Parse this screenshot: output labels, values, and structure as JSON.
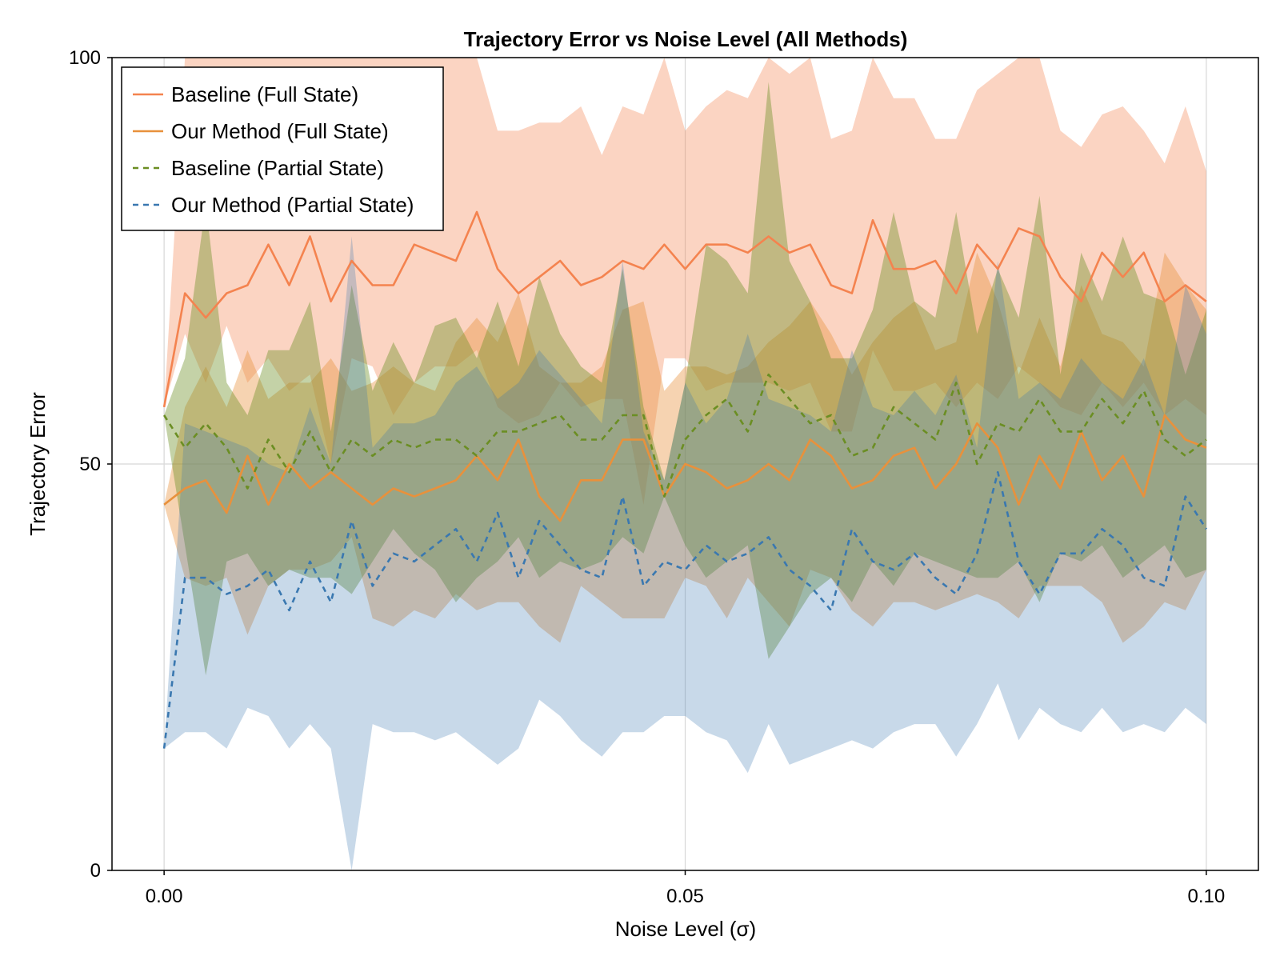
{
  "chart_data": {
    "type": "line",
    "title": "Trajectory Error vs Noise Level (All Methods)",
    "xlabel": "Noise Level (σ)",
    "ylabel": "Trajectory Error",
    "xlim": [
      -0.005,
      0.105
    ],
    "ylim": [
      0,
      100
    ],
    "xticks": [
      0.0,
      0.05,
      0.1
    ],
    "xtick_labels": [
      "0.00",
      "0.05",
      "0.10"
    ],
    "yticks": [
      0,
      50,
      100
    ],
    "ytick_labels": [
      "0",
      "50",
      "100"
    ],
    "grid": true,
    "legend_position": "top-left",
    "x": [
      0.0,
      0.002,
      0.004,
      0.006,
      0.008,
      0.01,
      0.012,
      0.014,
      0.016,
      0.018,
      0.02,
      0.022,
      0.024,
      0.026,
      0.028,
      0.03,
      0.032,
      0.034,
      0.036,
      0.038,
      0.04,
      0.042,
      0.044,
      0.046,
      0.048,
      0.05,
      0.052,
      0.054,
      0.056,
      0.058,
      0.06,
      0.062,
      0.064,
      0.066,
      0.068,
      0.07,
      0.072,
      0.074,
      0.076,
      0.078,
      0.08,
      0.082,
      0.084,
      0.086,
      0.088,
      0.09,
      0.092,
      0.094,
      0.096,
      0.098,
      0.1
    ],
    "series": [
      {
        "name": "Baseline (Full State)",
        "color": "#f4834f",
        "line_style": "solid",
        "band_opacity": 0.35,
        "mean": [
          57,
          71,
          68,
          71,
          72,
          77,
          72,
          78,
          70,
          75,
          72,
          72,
          77,
          76,
          75,
          81,
          74,
          71,
          73,
          75,
          72,
          73,
          75,
          74,
          77,
          74,
          77,
          77,
          76,
          78,
          76,
          77,
          72,
          71,
          80,
          74,
          74,
          75,
          71,
          77,
          74,
          79,
          78,
          73,
          70,
          76,
          73,
          76,
          70,
          72,
          70
        ],
        "lower": [
          57,
          66,
          60,
          67,
          60,
          63,
          59,
          61,
          50,
          63,
          62,
          56,
          60,
          62,
          62,
          64,
          57,
          55,
          56,
          60,
          57,
          58,
          58,
          45,
          63,
          63,
          59,
          60,
          60,
          60,
          59,
          60,
          54,
          54,
          64,
          59,
          59,
          60,
          57,
          60,
          58,
          62,
          60,
          57,
          56,
          60,
          57,
          60,
          56,
          58,
          56
        ],
        "upper": [
          57,
          100,
          100,
          100,
          100,
          100,
          100,
          100,
          100,
          100,
          100,
          100,
          100,
          100,
          100,
          100,
          91,
          91,
          92,
          92,
          94,
          88,
          94,
          93,
          100,
          91,
          94,
          96,
          95,
          100,
          98,
          100,
          90,
          91,
          100,
          95,
          95,
          90,
          90,
          96,
          98,
          100,
          100,
          91,
          89,
          93,
          94,
          91,
          87,
          94,
          86
        ]
      },
      {
        "name": "Our Method (Full State)",
        "color": "#e8913c",
        "line_style": "solid",
        "band_opacity": 0.4,
        "mean": [
          45,
          47,
          48,
          44,
          51,
          45,
          50,
          47,
          49,
          47,
          45,
          47,
          46,
          47,
          48,
          51,
          48,
          53,
          46,
          43,
          48,
          48,
          53,
          53,
          46,
          50,
          49,
          47,
          48,
          50,
          48,
          53,
          51,
          47,
          48,
          51,
          52,
          47,
          50,
          55,
          52,
          45,
          51,
          47,
          54,
          48,
          51,
          46,
          56,
          53,
          52
        ],
        "lower": [
          45,
          36,
          35,
          36,
          29,
          35,
          37,
          37,
          38,
          41,
          31,
          30,
          32,
          31,
          34,
          32,
          33,
          33,
          30,
          28,
          35,
          33,
          31,
          31,
          31,
          36,
          35,
          31,
          36,
          33,
          30,
          37,
          36,
          32,
          30,
          33,
          33,
          32,
          33,
          34,
          33,
          31,
          35,
          35,
          35,
          33,
          28,
          30,
          33,
          32,
          37
        ],
        "upper": [
          45,
          57,
          62,
          57,
          64,
          58,
          60,
          60,
          63,
          59,
          60,
          62,
          60,
          59,
          65,
          68,
          65,
          71,
          62,
          60,
          60,
          62,
          69,
          70,
          59,
          62,
          62,
          61,
          62,
          65,
          67,
          70,
          66,
          61,
          65,
          68,
          70,
          64,
          65,
          76,
          70,
          61,
          68,
          62,
          72,
          66,
          65,
          62,
          76,
          72,
          69
        ]
      },
      {
        "name": "Baseline (Partial State)",
        "color": "#6b8e23",
        "line_style": "dashed",
        "band_opacity": 0.4,
        "mean": [
          56,
          52,
          55,
          52,
          47,
          53,
          49,
          54,
          49,
          53,
          51,
          53,
          52,
          53,
          53,
          51,
          54,
          54,
          55,
          56,
          53,
          53,
          56,
          56,
          46,
          53,
          56,
          58,
          54,
          61,
          58,
          55,
          56,
          51,
          52,
          57,
          55,
          53,
          60,
          50,
          55,
          54,
          58,
          54,
          54,
          58,
          55,
          59,
          53,
          51,
          53
        ],
        "lower": [
          56,
          40,
          24,
          38,
          39,
          35,
          37,
          36,
          36,
          34,
          38,
          42,
          39,
          37,
          33,
          36,
          38,
          41,
          36,
          38,
          37,
          38,
          41,
          39,
          46,
          40,
          36,
          38,
          40,
          26,
          30,
          34,
          36,
          33,
          38,
          35,
          39,
          38,
          37,
          36,
          36,
          38,
          33,
          39,
          38,
          40,
          36,
          38,
          40,
          36,
          37
        ],
        "upper": [
          56,
          63,
          82,
          60,
          56,
          64,
          64,
          70,
          54,
          72,
          59,
          65,
          60,
          67,
          68,
          63,
          70,
          62,
          73,
          66,
          62,
          60,
          74,
          57,
          48,
          60,
          77,
          75,
          71,
          97,
          75,
          70,
          63,
          63,
          69,
          81,
          70,
          68,
          81,
          66,
          74,
          68,
          83,
          61,
          76,
          70,
          78,
          71,
          70,
          61,
          69
        ]
      },
      {
        "name": "Our Method (Partial State)",
        "color": "#3a78b0",
        "line_style": "dashed",
        "band_opacity": 0.28,
        "mean": [
          15,
          36,
          36,
          34,
          35,
          37,
          32,
          38,
          33,
          43,
          35,
          39,
          38,
          40,
          42,
          38,
          44,
          36,
          43,
          40,
          37,
          36,
          46,
          35,
          38,
          37,
          40,
          38,
          39,
          41,
          37,
          35,
          32,
          42,
          38,
          37,
          39,
          36,
          34,
          39,
          49,
          38,
          34,
          39,
          39,
          42,
          40,
          36,
          35,
          46,
          42
        ],
        "lower": [
          15,
          17,
          17,
          15,
          20,
          19,
          15,
          18,
          15,
          0,
          18,
          17,
          17,
          16,
          17,
          15,
          13,
          15,
          21,
          19,
          16,
          14,
          17,
          17,
          19,
          19,
          17,
          16,
          12,
          18,
          13,
          14,
          15,
          16,
          15,
          17,
          18,
          18,
          14,
          18,
          23,
          16,
          20,
          18,
          17,
          20,
          17,
          18,
          17,
          20,
          18
        ],
        "upper": [
          15,
          55,
          54,
          53,
          52,
          50,
          49,
          57,
          50,
          78,
          52,
          55,
          55,
          56,
          60,
          62,
          58,
          60,
          64,
          61,
          58,
          55,
          75,
          54,
          48,
          60,
          55,
          58,
          66,
          58,
          57,
          56,
          54,
          64,
          57,
          56,
          59,
          56,
          61,
          52,
          75,
          58,
          60,
          58,
          63,
          60,
          58,
          63,
          56,
          72,
          66
        ]
      }
    ]
  }
}
